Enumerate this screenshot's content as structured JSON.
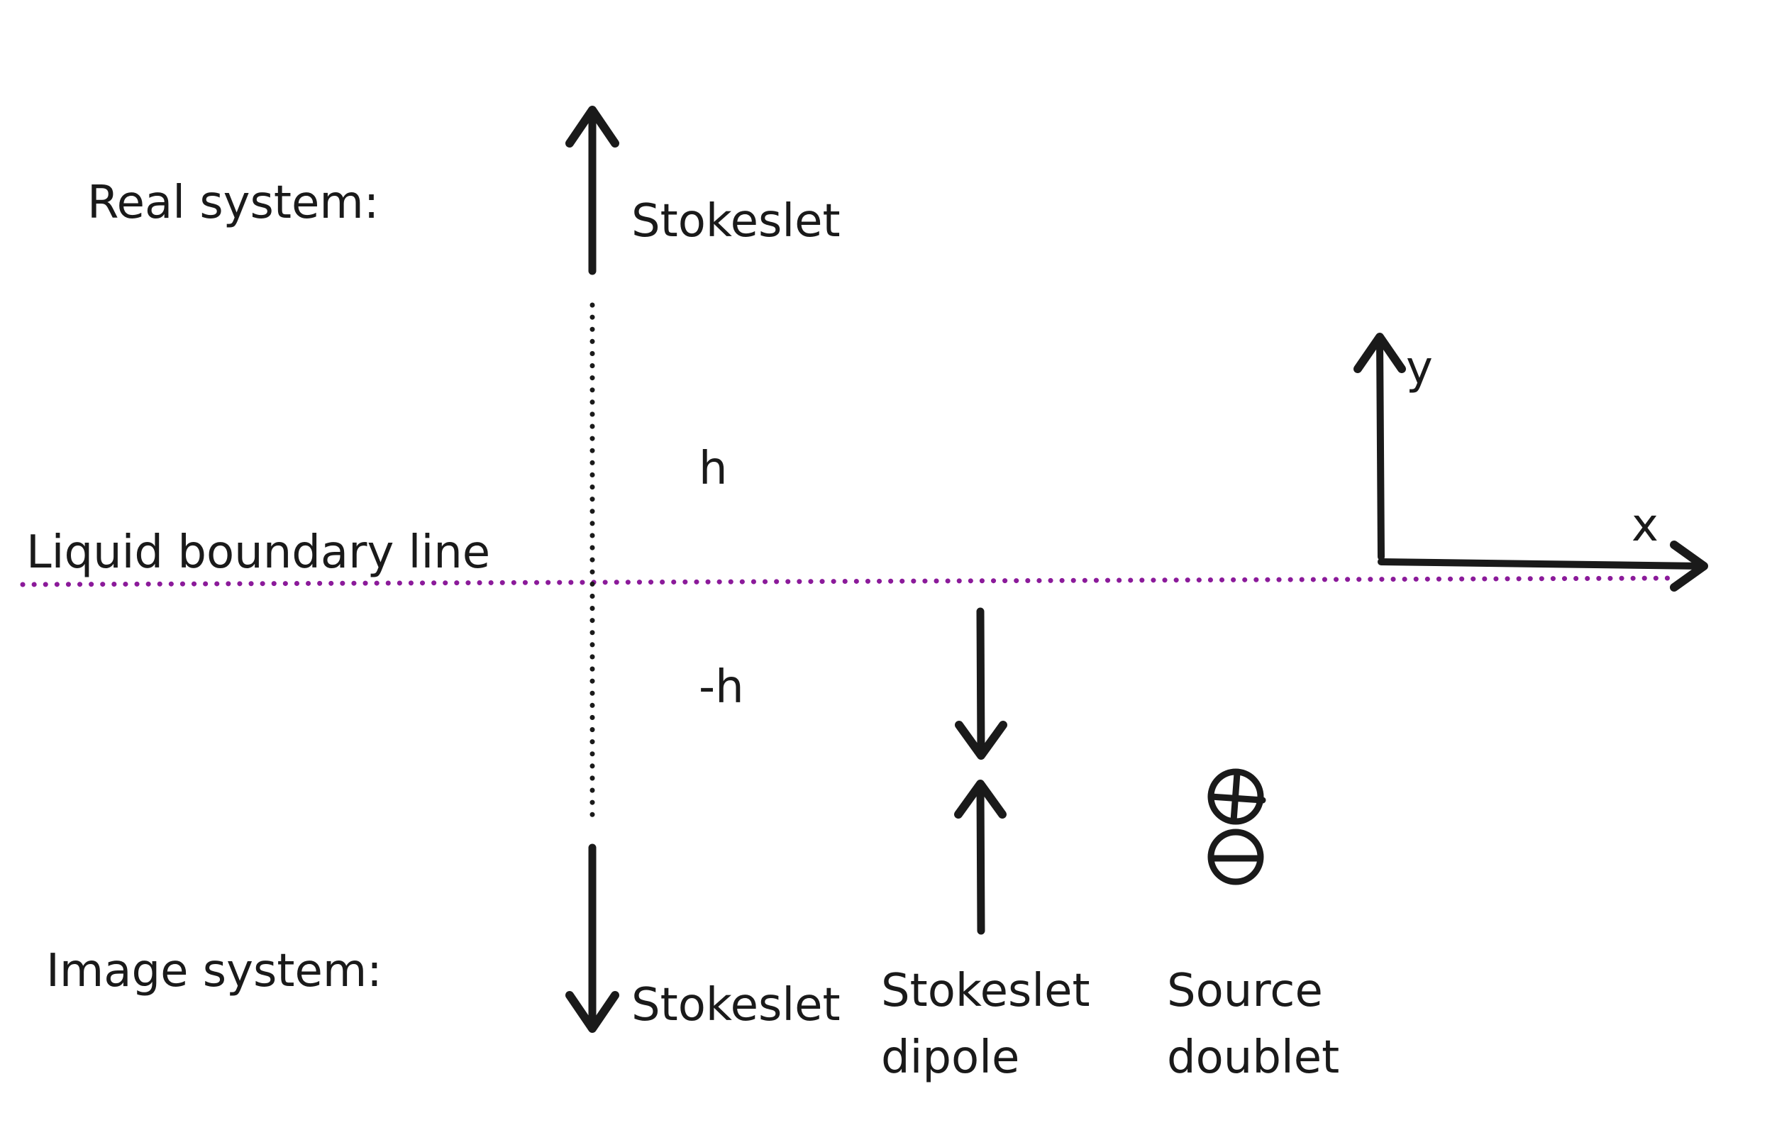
{
  "labels": {
    "real_system": "Real system:",
    "image_system": "Image system:",
    "boundary": "Liquid boundary line",
    "stokeslet_real": "Stokeslet",
    "stokeslet_image": "Stokeslet",
    "h": "h",
    "minus_h": "-h",
    "dipole_line1": "Stokeslet",
    "dipole_line2": "dipole",
    "doublet_line1": "Source",
    "doublet_line2": "doublet",
    "axis_x": "x",
    "axis_y": "y"
  },
  "colors": {
    "ink": "#1a1a1a",
    "boundary": "#8b1a9a"
  },
  "icons": {
    "plus": "plus-circle-icon",
    "minus": "minus-circle-icon"
  }
}
